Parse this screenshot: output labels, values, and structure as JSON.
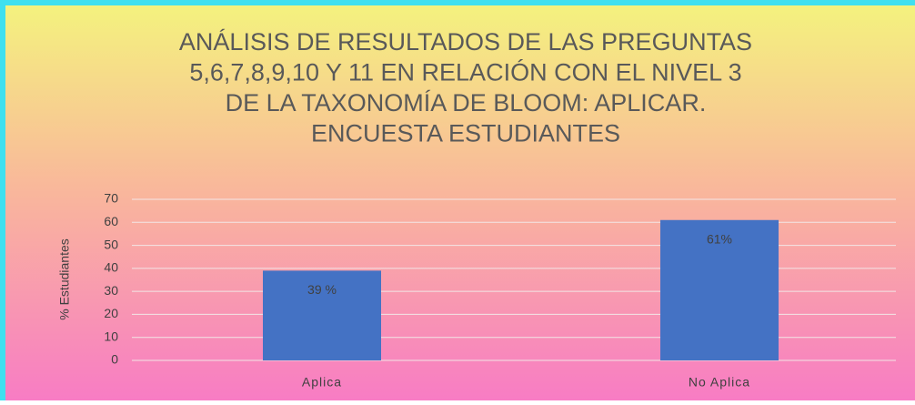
{
  "chart_data": {
    "type": "bar",
    "title": [
      "ANÁLISIS DE RESULTADOS DE LAS PREGUNTAS",
      "5,6,7,8,9,10 Y 11 EN RELACIÓN CON EL NIVEL 3",
      "DE LA TAXONOMÍA DE BLOOM: APLICAR.",
      "ENCUESTA ESTUDIANTES"
    ],
    "y_label": "% Estudiantes",
    "categories": [
      "Aplica",
      "No Aplica"
    ],
    "values": [
      39,
      61
    ],
    "value_labels": [
      "39 %",
      "61%"
    ],
    "color": "#4472c4",
    "ylim": [
      0,
      70
    ],
    "yticks": [
      0,
      10,
      20,
      30,
      40,
      50,
      60,
      70
    ],
    "grid": true
  }
}
